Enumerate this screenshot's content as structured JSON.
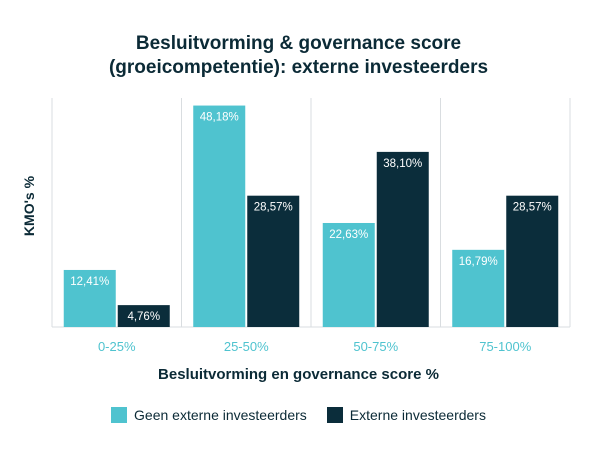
{
  "colors": {
    "series1": "#4fc3cf",
    "series2": "#0b2d3b",
    "axis_text": "#4fc3cf",
    "title": "#0b2a36",
    "grid": "#d9dde0"
  },
  "chart_data": {
    "type": "bar",
    "title": "Besluitvorming & governance score (groeicompetentie): externe investeerders",
    "title_lines": [
      "Besluitvorming & governance score",
      "(groeicompetentie): externe investeerders"
    ],
    "xlabel": "Besluitvorming en governance score %",
    "ylabel": "KMO's %",
    "categories": [
      "0-25%",
      "25-50%",
      "50-75%",
      "75-100%"
    ],
    "ylim": [
      0,
      52
    ],
    "series": [
      {
        "name": "Geen externe investeerders",
        "values": [
          12.41,
          48.18,
          22.63,
          16.79
        ],
        "labels": [
          "12,41%",
          "48,18%",
          "22,63%",
          "16,79%"
        ]
      },
      {
        "name": "Externe investeerders",
        "values": [
          4.76,
          28.57,
          38.1,
          28.57
        ],
        "labels": [
          "4,76%",
          "28,57%",
          "38,10%",
          "28,57%"
        ]
      }
    ],
    "legend_position": "bottom",
    "grid": false
  }
}
